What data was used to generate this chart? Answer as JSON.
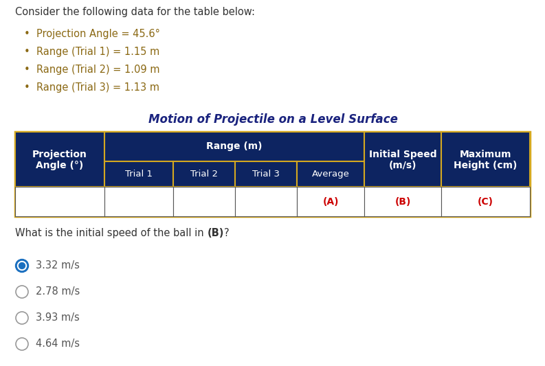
{
  "title_text": "Consider the following data for the table below:",
  "bullets": [
    "Projection Angle = 45.6°",
    "Range (Trial 1) = 1.15 m",
    "Range (Trial 2) = 1.09 m",
    "Range (Trial 3) = 1.13 m"
  ],
  "table_title": "Motion of Projectile on a Level Surface",
  "table_header_bg": "#0D2461",
  "table_border_color": "#D4A820",
  "header_text_color": "#FFFFFF",
  "label_A": "(A)",
  "label_B": "(B)",
  "label_C": "(C)",
  "red_color": "#CC0000",
  "question_prefix": "What is the initial speed of the ball in ",
  "question_bold": "(B)",
  "question_suffix": "?",
  "options": [
    {
      "label": "3.32 m/s",
      "selected": true
    },
    {
      "label": "2.78 m/s",
      "selected": false
    },
    {
      "label": "3.93 m/s",
      "selected": false
    },
    {
      "label": "4.64 m/s",
      "selected": false
    }
  ],
  "radio_selected_color": "#1A6FBF",
  "text_color_dark": "#555555",
  "text_color_blue": "#1a237e",
  "text_color_bullet": "#8B6914",
  "bg_color": "#FFFFFF"
}
